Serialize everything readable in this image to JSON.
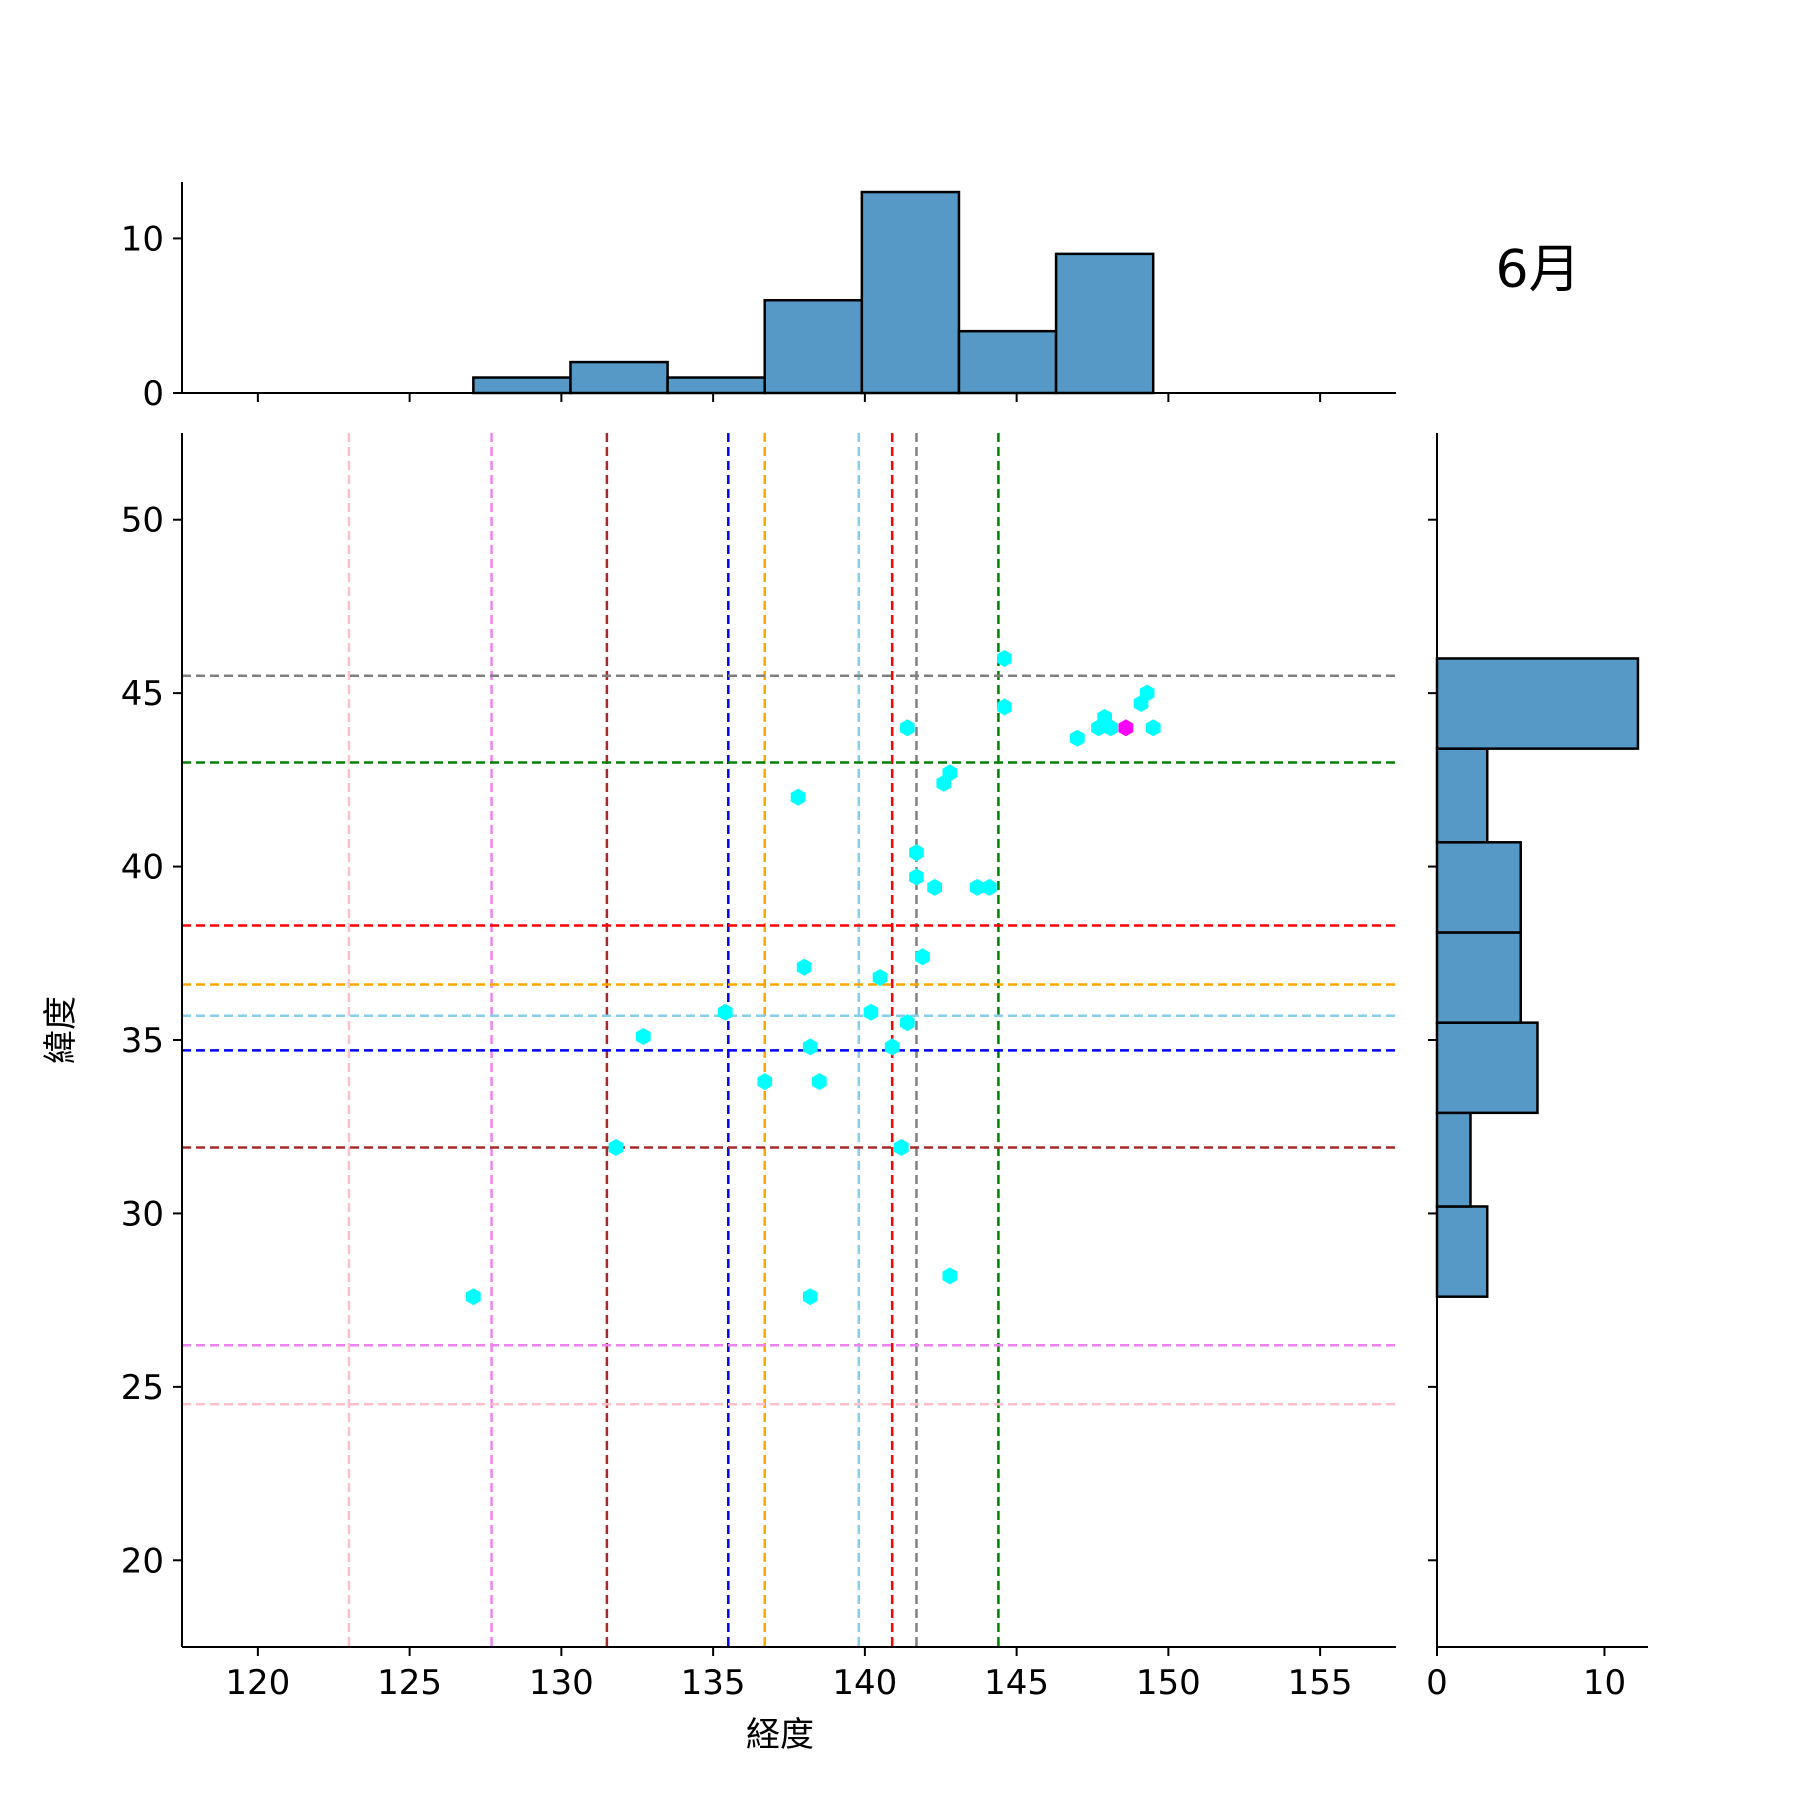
{
  "month_label": "6月",
  "chart_data": {
    "type": "scatter",
    "xlabel": "経度",
    "ylabel": "緯度",
    "xlim": [
      117.5,
      157.5
    ],
    "ylim": [
      17.5,
      52.5
    ],
    "xticks": [
      120,
      125,
      130,
      135,
      140,
      145,
      150,
      155
    ],
    "yticks": [
      20,
      25,
      30,
      35,
      40,
      45,
      50
    ],
    "grid": false,
    "points": [
      {
        "x": 127.1,
        "y": 27.6
      },
      {
        "x": 131.8,
        "y": 31.9
      },
      {
        "x": 132.7,
        "y": 35.1
      },
      {
        "x": 135.4,
        "y": 35.8
      },
      {
        "x": 136.7,
        "y": 33.8
      },
      {
        "x": 137.8,
        "y": 42.0
      },
      {
        "x": 138.0,
        "y": 37.1
      },
      {
        "x": 138.2,
        "y": 34.8
      },
      {
        "x": 138.5,
        "y": 33.8
      },
      {
        "x": 138.2,
        "y": 27.6
      },
      {
        "x": 140.2,
        "y": 35.8
      },
      {
        "x": 140.5,
        "y": 36.8
      },
      {
        "x": 140.9,
        "y": 34.8
      },
      {
        "x": 141.2,
        "y": 31.9
      },
      {
        "x": 141.4,
        "y": 35.5
      },
      {
        "x": 141.4,
        "y": 44.0
      },
      {
        "x": 141.7,
        "y": 40.4
      },
      {
        "x": 141.7,
        "y": 39.7
      },
      {
        "x": 141.9,
        "y": 37.4
      },
      {
        "x": 142.3,
        "y": 39.4
      },
      {
        "x": 142.6,
        "y": 42.4
      },
      {
        "x": 142.8,
        "y": 42.7
      },
      {
        "x": 142.8,
        "y": 28.2
      },
      {
        "x": 143.7,
        "y": 39.4
      },
      {
        "x": 144.1,
        "y": 39.4
      },
      {
        "x": 144.6,
        "y": 46.0
      },
      {
        "x": 144.6,
        "y": 44.6
      },
      {
        "x": 147.0,
        "y": 43.7
      },
      {
        "x": 147.7,
        "y": 44.0
      },
      {
        "x": 147.9,
        "y": 44.3
      },
      {
        "x": 148.1,
        "y": 44.0
      },
      {
        "x": 149.1,
        "y": 44.7
      },
      {
        "x": 149.3,
        "y": 45.0
      },
      {
        "x": 149.5,
        "y": 44.0
      }
    ],
    "highlight_point": {
      "x": 148.6,
      "y": 44.0,
      "color": "#ff00ff"
    },
    "point_color": "#00ffff",
    "vlines": [
      {
        "x": 123.0,
        "color": "#ffc0cb"
      },
      {
        "x": 127.7,
        "color": "#ee82ee"
      },
      {
        "x": 131.5,
        "color": "#a52a2a"
      },
      {
        "x": 135.5,
        "color": "#0000ff"
      },
      {
        "x": 136.7,
        "color": "#ffa500"
      },
      {
        "x": 139.8,
        "color": "#87ceeb"
      },
      {
        "x": 140.9,
        "color": "#ff0000"
      },
      {
        "x": 141.7,
        "color": "#808080"
      },
      {
        "x": 144.4,
        "color": "#008000"
      }
    ],
    "hlines": [
      {
        "y": 45.5,
        "color": "#808080"
      },
      {
        "y": 43.0,
        "color": "#008000"
      },
      {
        "y": 38.3,
        "color": "#ff0000"
      },
      {
        "y": 36.6,
        "color": "#ffa500"
      },
      {
        "y": 35.7,
        "color": "#87ceeb"
      },
      {
        "y": 34.7,
        "color": "#0000ff"
      },
      {
        "y": 31.9,
        "color": "#a52a2a"
      },
      {
        "y": 26.2,
        "color": "#ee82ee"
      },
      {
        "y": 24.5,
        "color": "#ffc0cb"
      }
    ],
    "top_histogram": {
      "bar_color": "#5799c6",
      "ylim": [
        0,
        13.65
      ],
      "yticks": [
        0,
        10
      ],
      "bins": [
        {
          "x0": 127.1,
          "x1": 130.3,
          "count": 1
        },
        {
          "x0": 130.3,
          "x1": 133.5,
          "count": 2
        },
        {
          "x0": 133.5,
          "x1": 136.7,
          "count": 1
        },
        {
          "x0": 136.7,
          "x1": 139.9,
          "count": 6
        },
        {
          "x0": 139.9,
          "x1": 143.1,
          "count": 13
        },
        {
          "x0": 143.1,
          "x1": 146.3,
          "count": 4
        },
        {
          "x0": 146.3,
          "x1": 149.5,
          "count": 9
        }
      ]
    },
    "right_histogram": {
      "bar_color": "#5799c6",
      "xlim": [
        0,
        12.6
      ],
      "xticks": [
        0,
        10
      ],
      "bins": [
        {
          "y0": 27.6,
          "y1": 30.2,
          "count": 3
        },
        {
          "y0": 30.2,
          "y1": 32.9,
          "count": 2
        },
        {
          "y0": 32.9,
          "y1": 35.5,
          "count": 6
        },
        {
          "y0": 35.5,
          "y1": 38.1,
          "count": 5
        },
        {
          "y0": 38.1,
          "y1": 40.7,
          "count": 5
        },
        {
          "y0": 40.7,
          "y1": 43.4,
          "count": 3
        },
        {
          "y0": 43.4,
          "y1": 46.0,
          "count": 12
        }
      ]
    }
  }
}
